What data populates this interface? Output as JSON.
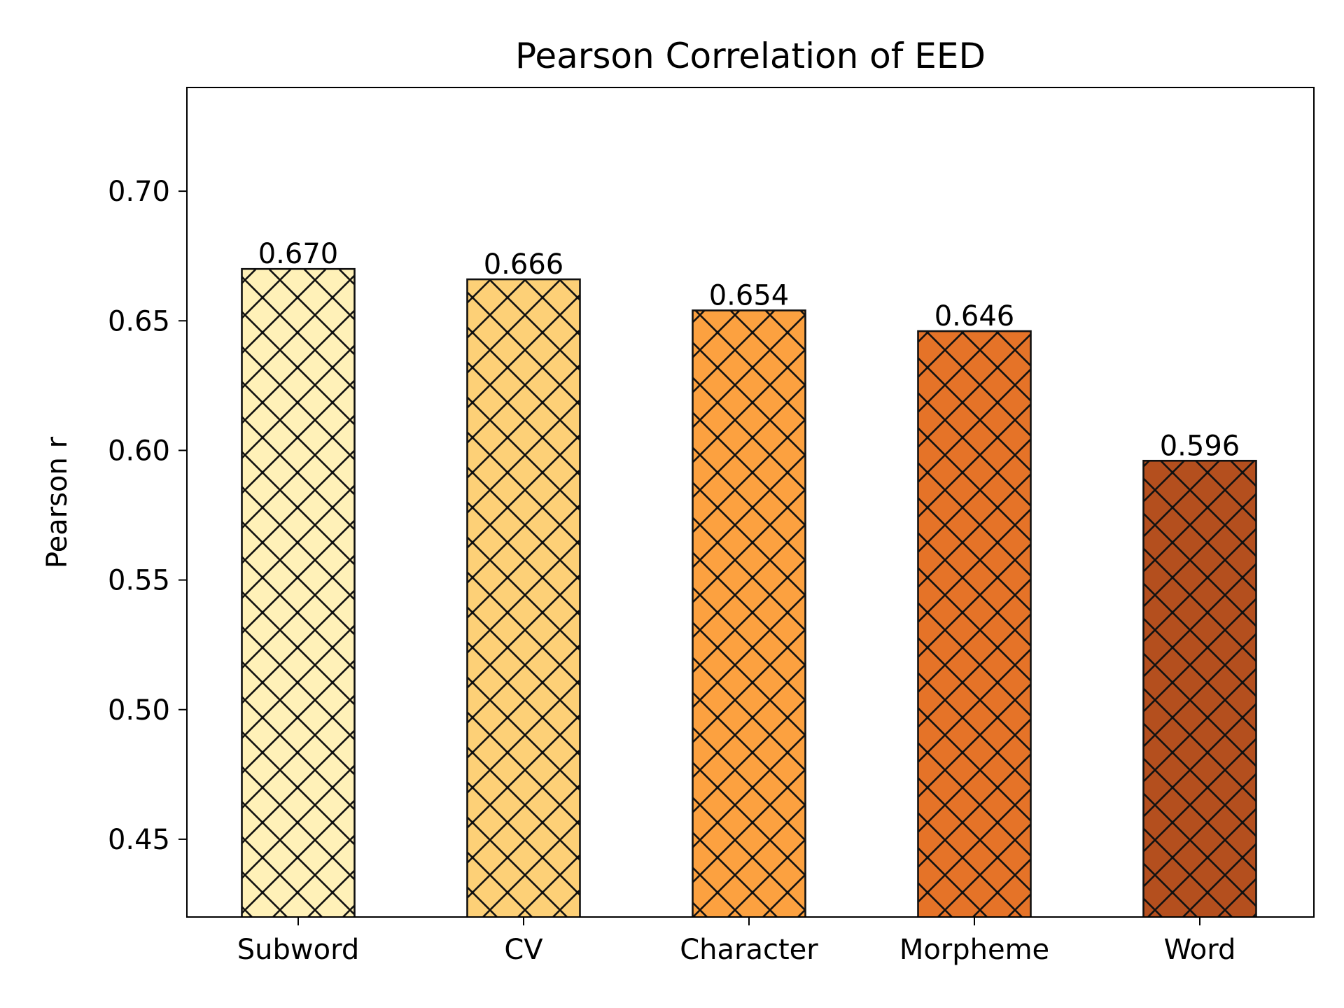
{
  "chart_data": {
    "type": "bar",
    "title": "Pearson Correlation of EED",
    "xlabel": "",
    "ylabel": "Pearson r",
    "categories": [
      "Subword",
      "CV",
      "Character",
      "Morpheme",
      "Word"
    ],
    "values": [
      0.67,
      0.666,
      0.654,
      0.646,
      0.596
    ],
    "value_labels": [
      "0.670",
      "0.666",
      "0.654",
      "0.646",
      "0.596"
    ],
    "colors": [
      "#fff1b8",
      "#fdd077",
      "#fca140",
      "#e57328",
      "#b44f1e"
    ],
    "hatch": "crosshatch-diagonal",
    "ylim": [
      0.42,
      0.74
    ],
    "yticks": [
      0.45,
      0.5,
      0.55,
      0.6,
      0.65,
      0.7
    ],
    "ytick_labels": [
      "0.45",
      "0.50",
      "0.55",
      "0.60",
      "0.65",
      "0.70"
    ],
    "grid": false,
    "legend": "none"
  }
}
